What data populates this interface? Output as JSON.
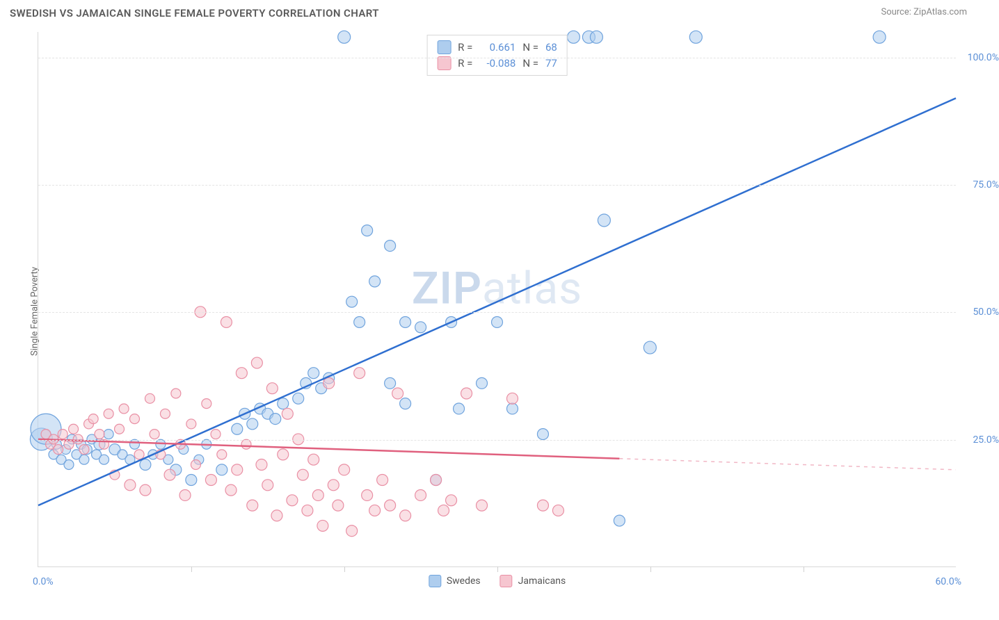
{
  "header": {
    "title": "SWEDISH VS JAMAICAN SINGLE FEMALE POVERTY CORRELATION CHART",
    "source": "Source: ZipAtlas.com"
  },
  "chart": {
    "type": "scatter",
    "y_axis_label": "Single Female Poverty",
    "watermark": "ZIPatlas",
    "background_color": "#ffffff",
    "grid_color": "#e4e4e4",
    "axis_color": "#d9d9d9",
    "tick_label_color": "#5b8fd6",
    "xlim": [
      0,
      60
    ],
    "ylim": [
      0,
      105
    ],
    "x_ticks": [
      0,
      10,
      20,
      30,
      40,
      50,
      60
    ],
    "x_tick_labels": {
      "start": "0.0%",
      "end": "60.0%"
    },
    "y_gridlines": [
      {
        "value": 25,
        "label": "25.0%"
      },
      {
        "value": 50,
        "label": "50.0%"
      },
      {
        "value": 75,
        "label": "75.0%"
      },
      {
        "value": 100,
        "label": "100.0%"
      }
    ],
    "series": [
      {
        "name": "Swedes",
        "fill": "#aecdee",
        "stroke": "#6fa3dd",
        "line_color": "#2f6fd0",
        "line_width": 2.5,
        "reg": {
          "x1": 0,
          "y1": 12,
          "x2": 60,
          "y2": 92,
          "solid_until_x": 60
        },
        "R": "0.661",
        "N": "68",
        "marker_opacity": 0.55,
        "points": [
          {
            "x": 0.2,
            "y": 25,
            "r": 16
          },
          {
            "x": 0.5,
            "y": 27,
            "r": 22
          },
          {
            "x": 1,
            "y": 22,
            "r": 7
          },
          {
            "x": 1.2,
            "y": 24,
            "r": 7
          },
          {
            "x": 1.5,
            "y": 21,
            "r": 7
          },
          {
            "x": 1.8,
            "y": 23,
            "r": 7
          },
          {
            "x": 2,
            "y": 20,
            "r": 7
          },
          {
            "x": 2.2,
            "y": 25,
            "r": 7
          },
          {
            "x": 2.5,
            "y": 22,
            "r": 7
          },
          {
            "x": 2.8,
            "y": 24,
            "r": 7
          },
          {
            "x": 3,
            "y": 21,
            "r": 7
          },
          {
            "x": 3.2,
            "y": 23,
            "r": 7
          },
          {
            "x": 3.5,
            "y": 25,
            "r": 7
          },
          {
            "x": 3.8,
            "y": 22,
            "r": 7
          },
          {
            "x": 4,
            "y": 24,
            "r": 8
          },
          {
            "x": 4.3,
            "y": 21,
            "r": 7
          },
          {
            "x": 4.6,
            "y": 26,
            "r": 7
          },
          {
            "x": 5,
            "y": 23,
            "r": 8
          },
          {
            "x": 5.5,
            "y": 22,
            "r": 7
          },
          {
            "x": 6,
            "y": 21,
            "r": 7
          },
          {
            "x": 6.3,
            "y": 24,
            "r": 7
          },
          {
            "x": 7,
            "y": 20,
            "r": 8
          },
          {
            "x": 7.5,
            "y": 22,
            "r": 7
          },
          {
            "x": 8,
            "y": 24,
            "r": 7
          },
          {
            "x": 8.5,
            "y": 21,
            "r": 7
          },
          {
            "x": 9,
            "y": 19,
            "r": 8
          },
          {
            "x": 9.5,
            "y": 23,
            "r": 7
          },
          {
            "x": 10,
            "y": 17,
            "r": 8
          },
          {
            "x": 10.5,
            "y": 21,
            "r": 7
          },
          {
            "x": 11,
            "y": 24,
            "r": 7
          },
          {
            "x": 12,
            "y": 19,
            "r": 8
          },
          {
            "x": 13,
            "y": 27,
            "r": 8
          },
          {
            "x": 13.5,
            "y": 30,
            "r": 8
          },
          {
            "x": 14,
            "y": 28,
            "r": 8
          },
          {
            "x": 14.5,
            "y": 31,
            "r": 8
          },
          {
            "x": 15,
            "y": 30,
            "r": 8
          },
          {
            "x": 15.5,
            "y": 29,
            "r": 8
          },
          {
            "x": 16,
            "y": 32,
            "r": 8
          },
          {
            "x": 17,
            "y": 33,
            "r": 8
          },
          {
            "x": 17.5,
            "y": 36,
            "r": 8
          },
          {
            "x": 18,
            "y": 38,
            "r": 8
          },
          {
            "x": 18.5,
            "y": 35,
            "r": 8
          },
          {
            "x": 19,
            "y": 37,
            "r": 8
          },
          {
            "x": 20,
            "y": 104,
            "r": 9
          },
          {
            "x": 20.5,
            "y": 52,
            "r": 8
          },
          {
            "x": 21,
            "y": 48,
            "r": 8
          },
          {
            "x": 21.5,
            "y": 66,
            "r": 8
          },
          {
            "x": 22,
            "y": 56,
            "r": 8
          },
          {
            "x": 23,
            "y": 63,
            "r": 8
          },
          {
            "x": 23,
            "y": 36,
            "r": 8
          },
          {
            "x": 24,
            "y": 48,
            "r": 8
          },
          {
            "x": 24,
            "y": 32,
            "r": 8
          },
          {
            "x": 25,
            "y": 47,
            "r": 8
          },
          {
            "x": 26,
            "y": 17,
            "r": 8
          },
          {
            "x": 27,
            "y": 48,
            "r": 8
          },
          {
            "x": 27.5,
            "y": 31,
            "r": 8
          },
          {
            "x": 29,
            "y": 36,
            "r": 8
          },
          {
            "x": 30,
            "y": 48,
            "r": 8
          },
          {
            "x": 31,
            "y": 31,
            "r": 8
          },
          {
            "x": 33,
            "y": 26,
            "r": 8
          },
          {
            "x": 35,
            "y": 104,
            "r": 9
          },
          {
            "x": 36,
            "y": 104,
            "r": 9
          },
          {
            "x": 36.5,
            "y": 104,
            "r": 9
          },
          {
            "x": 37,
            "y": 68,
            "r": 9
          },
          {
            "x": 38,
            "y": 9,
            "r": 8
          },
          {
            "x": 40,
            "y": 43,
            "r": 9
          },
          {
            "x": 43,
            "y": 104,
            "r": 9
          },
          {
            "x": 55,
            "y": 104,
            "r": 9
          }
        ]
      },
      {
        "name": "Jamaicans",
        "fill": "#f6c6d0",
        "stroke": "#e98fa4",
        "line_color": "#e0607e",
        "line_width": 2.5,
        "reg": {
          "x1": 0,
          "y1": 25,
          "x2": 60,
          "y2": 19,
          "solid_until_x": 38
        },
        "R": "-0.088",
        "N": "77",
        "marker_opacity": 0.55,
        "points": [
          {
            "x": 0.5,
            "y": 26,
            "r": 7
          },
          {
            "x": 0.8,
            "y": 24,
            "r": 7
          },
          {
            "x": 1,
            "y": 25,
            "r": 7
          },
          {
            "x": 1.3,
            "y": 23,
            "r": 7
          },
          {
            "x": 1.6,
            "y": 26,
            "r": 7
          },
          {
            "x": 2,
            "y": 24,
            "r": 7
          },
          {
            "x": 2.3,
            "y": 27,
            "r": 7
          },
          {
            "x": 2.6,
            "y": 25,
            "r": 7
          },
          {
            "x": 3,
            "y": 23,
            "r": 7
          },
          {
            "x": 3.3,
            "y": 28,
            "r": 7
          },
          {
            "x": 3.6,
            "y": 29,
            "r": 7
          },
          {
            "x": 4,
            "y": 26,
            "r": 7
          },
          {
            "x": 4.3,
            "y": 24,
            "r": 7
          },
          {
            "x": 4.6,
            "y": 30,
            "r": 7
          },
          {
            "x": 5,
            "y": 18,
            "r": 7
          },
          {
            "x": 5.3,
            "y": 27,
            "r": 7
          },
          {
            "x": 5.6,
            "y": 31,
            "r": 7
          },
          {
            "x": 6,
            "y": 16,
            "r": 8
          },
          {
            "x": 6.3,
            "y": 29,
            "r": 7
          },
          {
            "x": 6.6,
            "y": 22,
            "r": 7
          },
          {
            "x": 7,
            "y": 15,
            "r": 8
          },
          {
            "x": 7.3,
            "y": 33,
            "r": 7
          },
          {
            "x": 7.6,
            "y": 26,
            "r": 7
          },
          {
            "x": 8,
            "y": 22,
            "r": 7
          },
          {
            "x": 8.3,
            "y": 30,
            "r": 7
          },
          {
            "x": 8.6,
            "y": 18,
            "r": 8
          },
          {
            "x": 9,
            "y": 34,
            "r": 7
          },
          {
            "x": 9.3,
            "y": 24,
            "r": 7
          },
          {
            "x": 9.6,
            "y": 14,
            "r": 8
          },
          {
            "x": 10,
            "y": 28,
            "r": 7
          },
          {
            "x": 10.3,
            "y": 20,
            "r": 7
          },
          {
            "x": 10.6,
            "y": 50,
            "r": 8
          },
          {
            "x": 11,
            "y": 32,
            "r": 7
          },
          {
            "x": 11.3,
            "y": 17,
            "r": 8
          },
          {
            "x": 11.6,
            "y": 26,
            "r": 7
          },
          {
            "x": 12,
            "y": 22,
            "r": 7
          },
          {
            "x": 12.3,
            "y": 48,
            "r": 8
          },
          {
            "x": 12.6,
            "y": 15,
            "r": 8
          },
          {
            "x": 13,
            "y": 19,
            "r": 8
          },
          {
            "x": 13.3,
            "y": 38,
            "r": 8
          },
          {
            "x": 13.6,
            "y": 24,
            "r": 7
          },
          {
            "x": 14,
            "y": 12,
            "r": 8
          },
          {
            "x": 14.3,
            "y": 40,
            "r": 8
          },
          {
            "x": 14.6,
            "y": 20,
            "r": 8
          },
          {
            "x": 15,
            "y": 16,
            "r": 8
          },
          {
            "x": 15.3,
            "y": 35,
            "r": 8
          },
          {
            "x": 15.6,
            "y": 10,
            "r": 8
          },
          {
            "x": 16,
            "y": 22,
            "r": 8
          },
          {
            "x": 16.3,
            "y": 30,
            "r": 8
          },
          {
            "x": 16.6,
            "y": 13,
            "r": 8
          },
          {
            "x": 17,
            "y": 25,
            "r": 8
          },
          {
            "x": 17.3,
            "y": 18,
            "r": 8
          },
          {
            "x": 17.6,
            "y": 11,
            "r": 8
          },
          {
            "x": 18,
            "y": 21,
            "r": 8
          },
          {
            "x": 18.3,
            "y": 14,
            "r": 8
          },
          {
            "x": 18.6,
            "y": 8,
            "r": 8
          },
          {
            "x": 19,
            "y": 36,
            "r": 8
          },
          {
            "x": 19.3,
            "y": 16,
            "r": 8
          },
          {
            "x": 19.6,
            "y": 12,
            "r": 8
          },
          {
            "x": 20,
            "y": 19,
            "r": 8
          },
          {
            "x": 20.5,
            "y": 7,
            "r": 8
          },
          {
            "x": 21,
            "y": 38,
            "r": 8
          },
          {
            "x": 21.5,
            "y": 14,
            "r": 8
          },
          {
            "x": 22,
            "y": 11,
            "r": 8
          },
          {
            "x": 22.5,
            "y": 17,
            "r": 8
          },
          {
            "x": 23,
            "y": 12,
            "r": 8
          },
          {
            "x": 23.5,
            "y": 34,
            "r": 8
          },
          {
            "x": 24,
            "y": 10,
            "r": 8
          },
          {
            "x": 25,
            "y": 14,
            "r": 8
          },
          {
            "x": 26,
            "y": 17,
            "r": 8
          },
          {
            "x": 26.5,
            "y": 11,
            "r": 8
          },
          {
            "x": 27,
            "y": 13,
            "r": 8
          },
          {
            "x": 28,
            "y": 34,
            "r": 8
          },
          {
            "x": 29,
            "y": 12,
            "r": 8
          },
          {
            "x": 31,
            "y": 33,
            "r": 8
          },
          {
            "x": 33,
            "y": 12,
            "r": 8
          },
          {
            "x": 34,
            "y": 11,
            "r": 8
          }
        ]
      }
    ],
    "legend_box": {
      "r_prefix": "R =",
      "n_prefix": "N ="
    },
    "bottom_legend": {
      "items": [
        "Swedes",
        "Jamaicans"
      ]
    }
  }
}
